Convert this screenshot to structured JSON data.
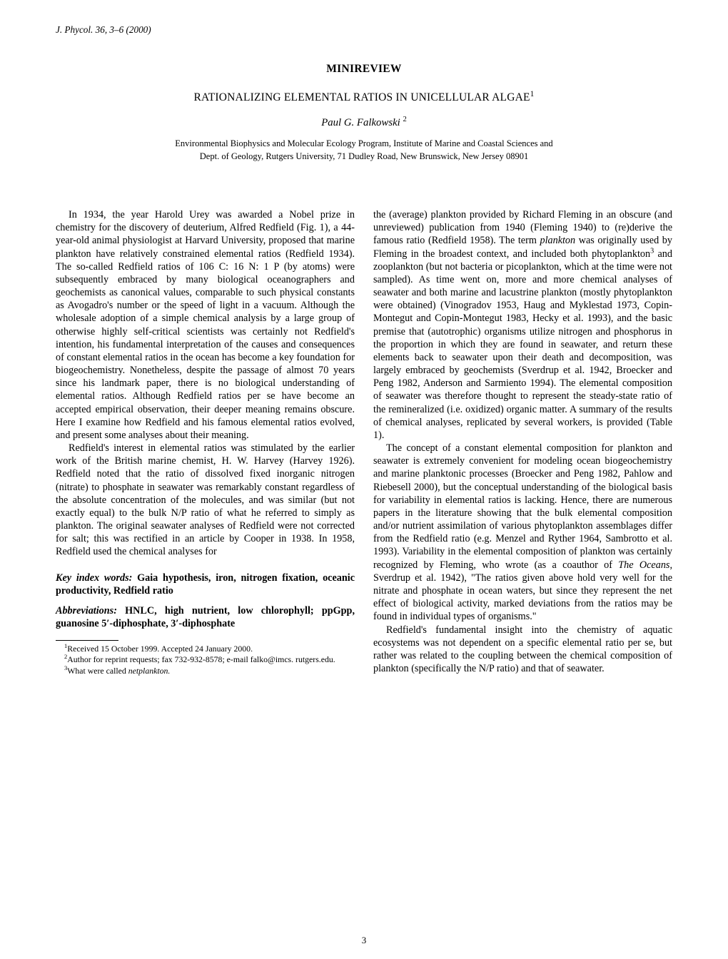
{
  "journal_header": "J. Phycol. 36, 3–6 (2000)",
  "section_label": "MINIREVIEW",
  "title": "RATIONALIZING ELEMENTAL RATIOS IN UNICELLULAR ALGAE",
  "title_sup": "1",
  "author": "Paul G. Falkowski",
  "author_sup": "2",
  "affiliation_line1": "Environmental Biophysics and Molecular Ecology Program, Institute of Marine and Coastal Sciences and",
  "affiliation_line2": "Dept. of Geology, Rutgers University, 71 Dudley Road, New Brunswick, New Jersey 08901",
  "para1": "In 1934, the year Harold Urey was awarded a Nobel prize in chemistry for the discovery of deuterium, Alfred Redfield (Fig. 1), a 44-year-old animal physiologist at Harvard University, proposed that marine plankton have relatively constrained elemental ratios (Redfield 1934). The so-called Redfield ratios of 106 C: 16 N: 1 P (by atoms) were subsequently embraced by many biological oceanographers and geochemists as canonical values, comparable to such physical constants as Avogadro's number or the speed of light in a vacuum. Although the wholesale adoption of a simple chemical analysis by a large group of otherwise highly self-critical scientists was certainly not Redfield's intention, his fundamental interpretation of the causes and consequences of constant elemental ratios in the ocean has become a key foundation for biogeochemistry. Nonetheless, despite the passage of almost 70 years since his landmark paper, there is no biological understanding of elemental ratios. Although Redfield ratios per se have become an accepted empirical observation, their deeper meaning remains obscure. Here I examine how Redfield and his famous elemental ratios evolved, and present some analyses about their meaning.",
  "para2": "Redfield's interest in elemental ratios was stimulated by the earlier work of the British marine chemist, H. W. Harvey (Harvey 1926). Redfield noted that the ratio of dissolved fixed inorganic nitrogen (nitrate) to phosphate in seawater was remarkably constant regardless of the absolute concentration of the molecules, and was similar (but not exactly equal) to the bulk N/P ratio of what he referred to simply as plankton. The original seawater analyses of Redfield were not corrected for salt; this was rectified in an article by Cooper in 1938. In 1958, Redfield used the chemical analyses for",
  "keywords_label": "Key index words:",
  "keywords_content": " Gaia hypothesis, iron, nitrogen fixation, oceanic productivity, Redfield ratio",
  "abbrev_label": "Abbreviations:",
  "abbrev_content": " HNLC, high nutrient, low chlorophyll; ppGpp, guanosine 5′-diphosphate, 3′-diphosphate",
  "footnote1_sup": "1",
  "footnote1": "Received 15 October 1999. Accepted 24 January 2000.",
  "footnote2_sup": "2",
  "footnote2": "Author for reprint requests; fax 732-932-8578; e-mail falko@imcs. rutgers.edu.",
  "footnote3_sup": "3",
  "footnote3_a": "What were called ",
  "footnote3_b": "netplankton.",
  "para3a": "the (average) plankton provided by Richard Fleming in an obscure (and unreviewed) publication from 1940 (Fleming 1940) to (re)derive the famous ratio (Redfield 1958). The term ",
  "para3_em": "plankton",
  "para3b": " was originally used by Fleming in the broadest context, and included both phytoplankton",
  "para3_sup": "3",
  "para3c": " and zooplankton (but not bacteria or picoplankton, which at the time were not sampled). As time went on, more and more chemical analyses of seawater and both marine and lacustrine plankton (mostly phytoplankton were obtained) (Vinogradov 1953, Haug and Myklestad 1973, Copin-Montegut and Copin-Montegut 1983, Hecky et al. 1993), and the basic premise that (autotrophic) organisms utilize nitrogen and phosphorus in the proportion in which they are found in seawater, and return these elements back to seawater upon their death and decomposition, was largely embraced by geochemists (Sverdrup et al. 1942, Broecker and Peng 1982, Anderson and Sarmiento 1994). The elemental composition of seawater was therefore thought to represent the steady-state ratio of the remineralized (i.e. oxidized) organic matter. A summary of the results of chemical analyses, replicated by several workers, is provided (Table 1).",
  "para4a": "The concept of a constant elemental composition for plankton and seawater is extremely convenient for modeling ocean biogeochemistry and marine planktonic processes (Broecker and Peng 1982, Pahlow and Riebesell 2000), but the conceptual understanding of the biological basis for variability in elemental ratios is lacking. Hence, there are numerous papers in the literature showing that the bulk elemental composition and/or nutrient assimilation of various phytoplankton assemblages differ from the Redfield ratio (e.g. Menzel and Ryther 1964, Sambrotto et al. 1993). Variability in the elemental composition of plankton was certainly recognized by Fleming, who wrote (as a coauthor of ",
  "para4_em": "The Oceans",
  "para4b": ", Sverdrup et al. 1942), \"The ratios given above hold very well for the nitrate and phosphate in ocean waters, but since they represent the net effect of biological activity, marked deviations from the ratios may be found in individual types of organisms.\"",
  "para5": "Redfield's fundamental insight into the chemistry of aquatic ecosystems was not dependent on a specific elemental ratio per se, but rather was related to the coupling between the chemical composition of plankton (specifically the N/P ratio) and that of seawater.",
  "page_number": "3"
}
